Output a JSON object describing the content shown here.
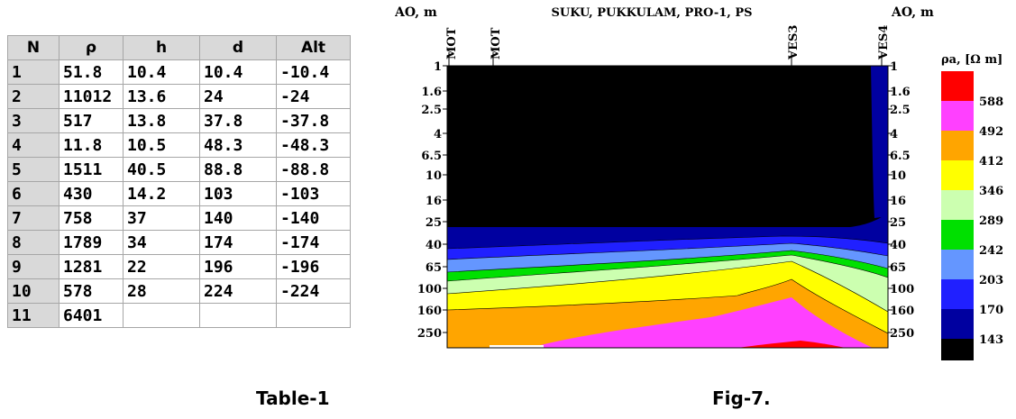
{
  "table": {
    "headers": [
      "N",
      "ρ",
      "h",
      "d",
      "Alt"
    ],
    "rows": [
      [
        "1",
        "51.8",
        "10.4",
        "10.4",
        "-10.4"
      ],
      [
        "2",
        "11012",
        "13.6",
        "24",
        "-24"
      ],
      [
        "3",
        "517",
        "13.8",
        "37.8",
        "-37.8"
      ],
      [
        "4",
        "11.8",
        "10.5",
        "48.3",
        "-48.3"
      ],
      [
        "5",
        "1511",
        "40.5",
        "88.8",
        "-88.8"
      ],
      [
        "6",
        "430",
        "14.2",
        "103",
        "-103"
      ],
      [
        "7",
        "758",
        "37",
        "140",
        "-140"
      ],
      [
        "8",
        "1789",
        "34",
        "174",
        "-174"
      ],
      [
        "9",
        "1281",
        "22",
        "196",
        "-196"
      ],
      [
        "10",
        "578",
        "28",
        "224",
        "-224"
      ],
      [
        "11",
        "6401",
        "",
        "",
        ""
      ]
    ],
    "caption": "Table-1"
  },
  "figure": {
    "title": "SUKU, PUKKULAM, PRO-1, PS",
    "left_axis_label": "AO, m",
    "right_axis_label": "AO, m",
    "stations": [
      "MOT",
      "MOT",
      "VES3",
      "VES4"
    ],
    "depth_ticks": [
      "1",
      "1.6",
      "2.5",
      "4",
      "6.5",
      "10",
      "16",
      "25",
      "40",
      "65",
      "100",
      "160",
      "250"
    ],
    "legend_title": "ρa, [Ω m]",
    "legend_levels": [
      {
        "value": "588",
        "color": "#ff0000"
      },
      {
        "value": "492",
        "color": "#ff40ff"
      },
      {
        "value": "412",
        "color": "#ffa500"
      },
      {
        "value": "346",
        "color": "#ffff00"
      },
      {
        "value": "289",
        "color": "#ccffb0"
      },
      {
        "value": "242",
        "color": "#00e000"
      },
      {
        "value": "203",
        "color": "#6496ff"
      },
      {
        "value": "170",
        "color": "#2020ff"
      },
      {
        "value": "143",
        "color": "#0000a0"
      },
      {
        "value": "",
        "color": "#000000"
      }
    ],
    "caption": "Fig-7."
  }
}
